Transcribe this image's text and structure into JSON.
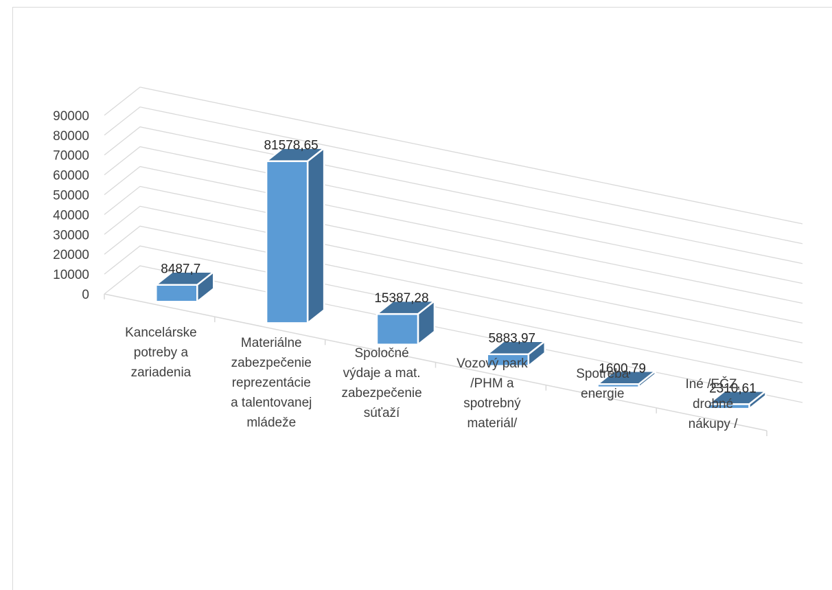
{
  "chart_data": {
    "type": "bar",
    "categories": [
      [
        "Kancelárske",
        "potreby a",
        "zariadenia"
      ],
      [
        "Materiálne",
        "zabezpečenie",
        "reprezentácie",
        "a talentovanej",
        "mládeže"
      ],
      [
        "Spoločné",
        "výdaje a mat.",
        "zabezpečenie",
        "súťaží"
      ],
      [
        "Vozový park",
        "/PHM a",
        "spotrebný",
        "materiál/"
      ],
      [
        "Spotreba",
        "energie"
      ],
      [
        "Iné /EČZ,",
        "drobné",
        "nákupy /"
      ]
    ],
    "values": [
      8487.7,
      81578.65,
      15387.28,
      5883.97,
      1600.79,
      2310.61
    ],
    "data_labels": [
      "8487,7",
      "81578,65",
      "15387,28",
      "5883,97",
      "1600,79",
      "2310,61"
    ],
    "y_ticks": [
      "0",
      "10000",
      "20000",
      "30000",
      "40000",
      "50000",
      "60000",
      "70000",
      "80000",
      "90000"
    ],
    "ylim": [
      0,
      90000
    ],
    "grid": true,
    "style": "3d-column",
    "colors": {
      "front": "#5b9bd5",
      "side": "#3e6d98",
      "top": "#41719c",
      "grid": "#d9d9d9",
      "edge": "#ffffff"
    }
  }
}
